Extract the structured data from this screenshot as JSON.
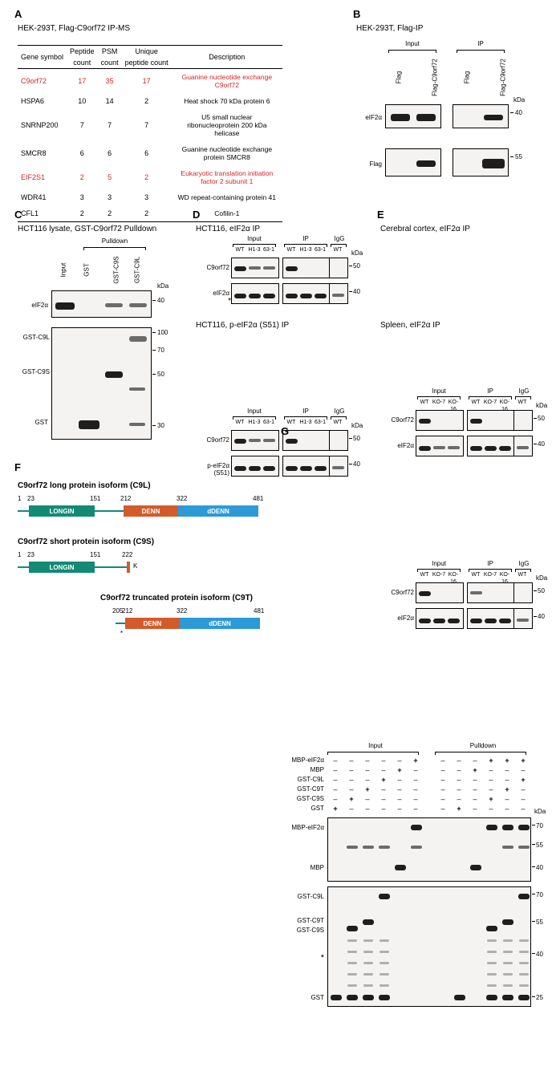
{
  "panels": {
    "A": {
      "label": "A",
      "title": "HEK-293T, Flag-C9orf72 IP-MS"
    },
    "B": {
      "label": "B",
      "title": "HEK-293T, Flag-IP"
    },
    "C": {
      "label": "C",
      "title": "HCT116 lysate, GST-C9orf72 Pulldown"
    },
    "D": {
      "label": "D",
      "title_top": "HCT116, eIF2α IP",
      "title_bot": "HCT116, p-eIF2α (S51) IP"
    },
    "E": {
      "label": "E",
      "title_top": "Cerebral cortex, eIF2α IP",
      "title_bot": "Spleen, eIF2α IP"
    },
    "F": {
      "label": "F",
      "t1": "C9orf72 long protein isoform (C9L)",
      "t2": "C9orf72 short protein isoform (C9S)",
      "t3": "C9orf72 truncated protein isoform (C9T)"
    },
    "G": {
      "label": "G"
    }
  },
  "table": {
    "headers": {
      "c1": "Gene symbol",
      "c2a": "Peptide",
      "c2b": "count",
      "c3a": "PSM",
      "c3b": "count",
      "c4a": "Unique",
      "c4b": "peptide count",
      "c5": "Description"
    },
    "rows": [
      {
        "g": "C9orf72",
        "p": "17",
        "s": "35",
        "u": "17",
        "d": "Guanine nucleotide exchange C9orf72",
        "hl": true
      },
      {
        "g": "HSPA6",
        "p": "10",
        "s": "14",
        "u": "2",
        "d": "Heat shock 70 kDa protein 6",
        "hl": false
      },
      {
        "g": "SNRNP200",
        "p": "7",
        "s": "7",
        "u": "7",
        "d": "U5 small nuclear ribonucleoprotein 200 kDa helicase",
        "hl": false
      },
      {
        "g": "SMCR8",
        "p": "6",
        "s": "6",
        "u": "6",
        "d": "Guanine nucleotide exchange protein SMCR8",
        "hl": false
      },
      {
        "g": "EIF2S1",
        "p": "2",
        "s": "5",
        "u": "2",
        "d": "Eukaryotic translation initiation factor 2 subunit 1",
        "hl": true
      },
      {
        "g": "WDR41",
        "p": "3",
        "s": "3",
        "u": "3",
        "d": "WD repeat-containing protein 41",
        "hl": false
      },
      {
        "g": "CFL1",
        "p": "2",
        "s": "2",
        "u": "2",
        "d": "Cofilin-1",
        "hl": false
      }
    ],
    "hl_color": "#d72524"
  },
  "B": {
    "top": {
      "input": "Input",
      "ip": "IP"
    },
    "lanes": [
      "Flag",
      "Flag-C9orf72",
      "Flag",
      "Flag-C9orf72"
    ],
    "rows": {
      "r1": "eIF2α",
      "r2": "Flag"
    },
    "kda": "kDa",
    "mw": {
      "r1": "40",
      "r2": "55"
    }
  },
  "C": {
    "top": "Pulldown",
    "lanes": [
      "Input",
      "GST",
      "GST-C9S",
      "GST-C9L"
    ],
    "rows": {
      "r1": "eIF2α",
      "r2": "GST-C9L",
      "r3": "GST-C9S",
      "r4": "GST"
    },
    "kda": "kDa",
    "mw": [
      "40",
      "100",
      "70",
      "50",
      "30"
    ]
  },
  "D": {
    "top": {
      "input": "Input",
      "ip": "IP",
      "igg": "IgG"
    },
    "lanes": [
      "WT",
      "H1-3",
      "63-1",
      "WT",
      "H1-3",
      "63-1",
      "WT"
    ],
    "rows1": {
      "r1": "C9orf72",
      "r2": "eIF2α"
    },
    "rows2": {
      "r1": "C9orf72",
      "r2": "p-eIF2α\n(S51)"
    },
    "kda": "kDa",
    "mw": [
      "50",
      "40",
      "50",
      "40"
    ],
    "star": "*"
  },
  "E": {
    "lanes": [
      "WT",
      "KO-7",
      "KO-16",
      "WT",
      "KO-7",
      "KO-16",
      "WT"
    ],
    "rows": {
      "r1": "C9orf72",
      "r2": "eIF2α"
    },
    "kda": "kDa",
    "mw": [
      "50",
      "40",
      "50",
      "40"
    ]
  },
  "F": {
    "n": {
      "n1": "1",
      "n23": "23",
      "n151": "151",
      "n212": "212",
      "n322": "322",
      "n481": "481",
      "n205": "205",
      "n222": "222"
    },
    "dom": {
      "longin": "LONGIN",
      "denn": "DENN",
      "ddenn": "dDENN"
    },
    "k": "K",
    "colors": {
      "longin": "#138a75",
      "denn": "#d35b2b",
      "ddenn": "#2d9ad6",
      "track": "#138a75"
    }
  },
  "G": {
    "top": {
      "input": "Input",
      "pd": "Pulldown"
    },
    "rowlabels": [
      "MBP-eIF2α",
      "MBP",
      "GST-C9L",
      "GST-C9T",
      "GST-C9S",
      "GST"
    ],
    "sidelabels": [
      "MBP-eIF2α",
      "MBP",
      "GST-C9L",
      "GST-C9T",
      "GST-C9S",
      "GST"
    ],
    "kda": "kDa",
    "mw": [
      "70",
      "55",
      "40",
      "70",
      "55",
      "40",
      "25"
    ],
    "star": "*",
    "plus": "+",
    "minus": "–",
    "matrix_cols": 12,
    "matrix": [
      [
        0,
        0,
        0,
        0,
        0,
        1,
        0,
        0,
        0,
        1,
        1,
        1
      ],
      [
        0,
        0,
        0,
        0,
        1,
        0,
        0,
        0,
        1,
        0,
        0,
        0
      ],
      [
        0,
        0,
        0,
        1,
        0,
        0,
        0,
        0,
        0,
        0,
        0,
        1
      ],
      [
        0,
        0,
        1,
        0,
        0,
        0,
        0,
        0,
        0,
        0,
        1,
        0
      ],
      [
        0,
        1,
        0,
        0,
        0,
        0,
        0,
        0,
        0,
        1,
        0,
        0
      ],
      [
        1,
        0,
        0,
        0,
        0,
        0,
        0,
        1,
        0,
        0,
        0,
        0
      ]
    ]
  }
}
